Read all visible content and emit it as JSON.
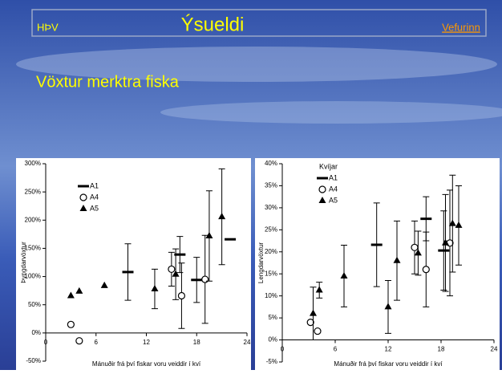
{
  "header": {
    "left": "HÞV",
    "title": "Ýsueldi",
    "link": "Vefurinn",
    "subtitle": "Vöxtur merktra fiska"
  },
  "chart_data": [
    {
      "type": "scatter",
      "ylabel": "Þyngdarvöxtur",
      "xlabel": "Mánuðir frá því fiskar voru veiddir í kví",
      "xlim": [
        0,
        24
      ],
      "xticks": [
        0,
        6,
        12,
        18,
        24
      ],
      "ylim": [
        -50,
        300
      ],
      "yticks": [
        {
          "value": -50,
          "label": "-50%"
        },
        {
          "value": 0,
          "label": "0%"
        },
        {
          "value": 50,
          "label": "50%"
        },
        {
          "value": 100,
          "label": "100%"
        },
        {
          "value": 150,
          "label": "150%"
        },
        {
          "value": 200,
          "label": "200%"
        },
        {
          "value": 250,
          "label": "250%"
        },
        {
          "value": 300,
          "label": "300%"
        }
      ],
      "series": [
        {
          "name": "A1",
          "marker": "dash",
          "color": "#000000",
          "x": [
            9.8,
            16,
            18,
            22
          ],
          "values": [
            108,
            139,
            94,
            166
          ],
          "errors": [
            50,
            32,
            40,
            null
          ]
        },
        {
          "name": "A4",
          "marker": "circle",
          "color": "#000000",
          "x": [
            3,
            4,
            15,
            16.2,
            19
          ],
          "values": [
            15,
            -14,
            113,
            66,
            95
          ],
          "errors": [
            null,
            null,
            30,
            58,
            78
          ]
        },
        {
          "name": "A5",
          "marker": "triangle",
          "color": "#000000",
          "x": [
            3,
            4,
            7,
            13,
            15.5,
            19.5,
            21
          ],
          "values": [
            66,
            74,
            84,
            78,
            104,
            172,
            206
          ],
          "errors": [
            null,
            null,
            null,
            35,
            45,
            80,
            85
          ]
        }
      ]
    },
    {
      "type": "scatter",
      "legend_title": "Kvíjar",
      "ylabel": "Lengdarvöxtur",
      "xlabel": "Mánuðir frá því fiskar voru veiddir í kví",
      "xlim": [
        0,
        24
      ],
      "xticks": [
        0,
        6,
        12,
        18,
        24
      ],
      "ylim": [
        -5,
        40
      ],
      "yticks": [
        {
          "value": -5,
          "label": "-5%"
        },
        {
          "value": 0,
          "label": "0%"
        },
        {
          "value": 5,
          "label": "5%"
        },
        {
          "value": 10,
          "label": "10%"
        },
        {
          "value": 15,
          "label": "15%"
        },
        {
          "value": 20,
          "label": "20%"
        },
        {
          "value": 25,
          "label": "25%"
        },
        {
          "value": 30,
          "label": "30%"
        },
        {
          "value": 35,
          "label": "35%"
        },
        {
          "value": 40,
          "label": "40%"
        }
      ],
      "series": [
        {
          "name": "A1",
          "marker": "dash",
          "color": "#000000",
          "x": [
            10.7,
            16.3,
            18.3
          ],
          "values": [
            21.6,
            27.5,
            20.3
          ],
          "errors": [
            9.5,
            5,
            9
          ]
        },
        {
          "name": "A4",
          "marker": "circle",
          "color": "#000000",
          "x": [
            3.2,
            4,
            15,
            16.3,
            19
          ],
          "values": [
            4,
            2,
            21,
            16,
            22
          ],
          "errors": [
            null,
            null,
            6,
            8.5,
            12
          ]
        },
        {
          "name": "A5",
          "marker": "triangle",
          "color": "#000000",
          "x": [
            3.5,
            4.2,
            7,
            12,
            13,
            15.4,
            18.5,
            19.3,
            20
          ],
          "values": [
            6,
            11.3,
            14.5,
            7.5,
            18,
            19.7,
            22,
            26.4,
            26
          ],
          "errors": [
            6,
            1.8,
            7,
            6,
            9,
            5,
            11,
            11,
            9
          ]
        }
      ]
    }
  ]
}
